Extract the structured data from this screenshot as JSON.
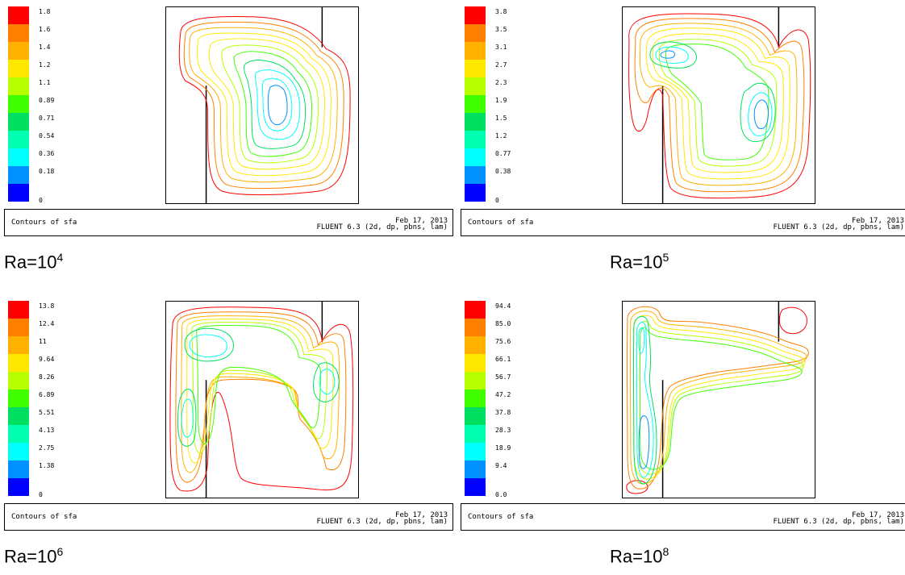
{
  "panels": [
    {
      "id": "ra4",
      "legend": [
        "1.8",
        "1.6",
        "1.4",
        "1.2",
        "1.1",
        "0.89",
        "0.71",
        "0.54",
        "0.36",
        "0.18",
        "0"
      ],
      "caption": "Contours of sfa",
      "date": "Feb 17, 2013",
      "software": "FLUENT 6.3 (2d, dp, pbns, lam)",
      "label_prefix": "Ra=10",
      "label_exp": "4"
    },
    {
      "id": "ra5",
      "legend": [
        "3.8",
        "3.5",
        "3.1",
        "2.7",
        "2.3",
        "1.9",
        "1.5",
        "1.2",
        "0.77",
        "0.38",
        "0"
      ],
      "caption": "Contours of sfa",
      "date": "Feb 17, 2013",
      "software": "FLUENT 6.3 (2d, dp, pbns, lam)",
      "label_prefix": "Ra=10",
      "label_exp": "5"
    },
    {
      "id": "ra6",
      "legend": [
        "13.8",
        "12.4",
        "11",
        "9.64",
        "8.26",
        "6.89",
        "5.51",
        "4.13",
        "2.75",
        "1.38",
        "0"
      ],
      "caption": "Contours of sfa",
      "date": "Feb 17, 2013",
      "software": "FLUENT 6.3 (2d, dp, pbns, lam)",
      "label_prefix": "Ra=10",
      "label_exp": "6"
    },
    {
      "id": "ra8",
      "legend": [
        "94.4",
        "85.0",
        "75.6",
        "66.1",
        "56.7",
        "47.2",
        "37.8",
        "28.3",
        "18.9",
        "9.4",
        "0.0"
      ],
      "caption": "Contours of sfa",
      "date": "Feb 17, 2013",
      "software": "FLUENT 6.3 (2d, dp, pbns, lam)",
      "label_prefix": "Ra=10",
      "label_exp": "8"
    }
  ],
  "colormap": [
    "#ff0000",
    "#ff7f00",
    "#ffb000",
    "#ffe800",
    "#b8ff00",
    "#40ff00",
    "#00e060",
    "#00ffb0",
    "#00ffff",
    "#0090ff",
    "#0000ff"
  ]
}
